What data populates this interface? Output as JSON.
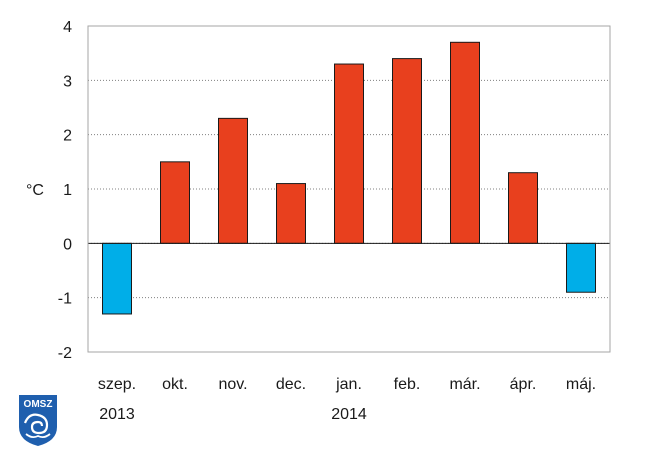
{
  "chart_data": {
    "type": "bar",
    "categories": [
      "szep.",
      "okt.",
      "nov.",
      "dec.",
      "jan.",
      "feb.",
      "már.",
      "ápr.",
      "máj."
    ],
    "year_labels": [
      {
        "text": "2013",
        "category_index": 0
      },
      {
        "text": "2014",
        "category_index": 4
      }
    ],
    "values": [
      -1.3,
      1.5,
      2.3,
      1.1,
      3.3,
      3.4,
      3.7,
      1.3,
      -0.9
    ],
    "ylabel": "°C",
    "ylim": [
      -2,
      4
    ],
    "yticks": [
      -2,
      -1,
      0,
      1,
      2,
      3,
      4
    ],
    "grid": true,
    "colors": {
      "positive": "#e8401e",
      "negative": "#00aee8",
      "axis": "#1a1a1a",
      "gridline": "#808080",
      "frame": "#a6a6a6"
    }
  },
  "logo": {
    "text": "OMSZ",
    "color": "#1f5fae"
  }
}
